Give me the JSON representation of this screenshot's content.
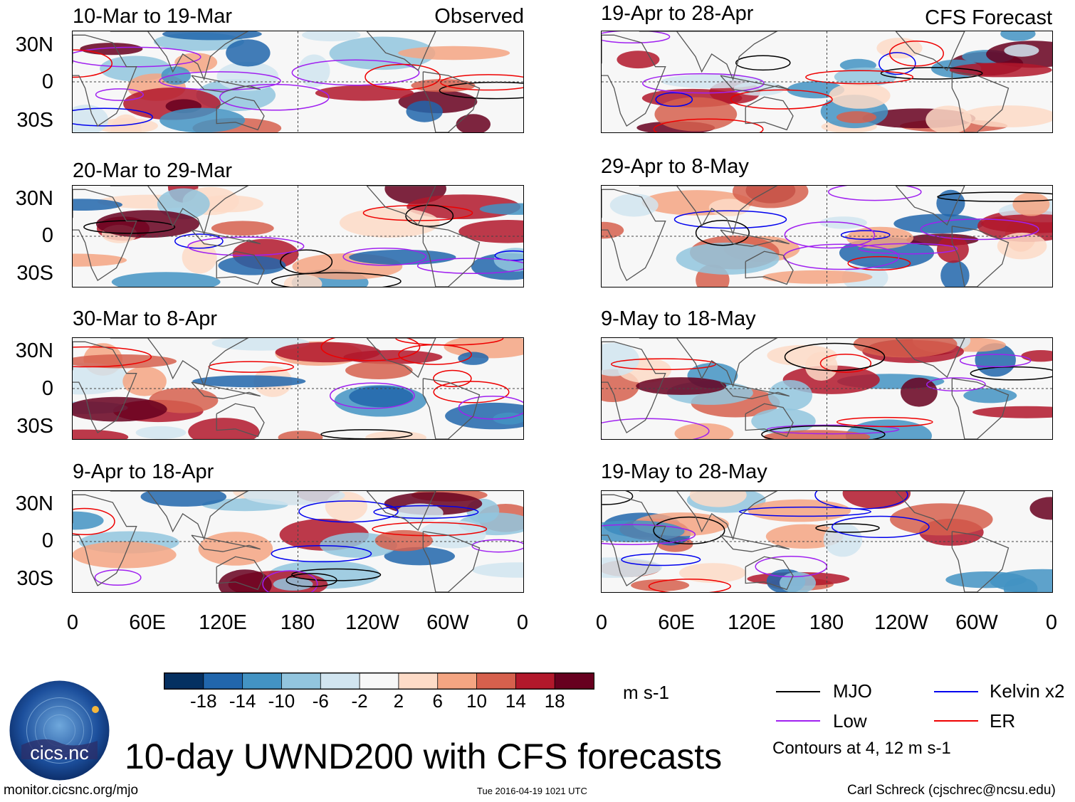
{
  "title": "10-day UWND200 with CFS forecasts",
  "observed_label": "Observed",
  "forecast_label": "CFS Forecast",
  "lat_ticks": [
    "30N",
    "0",
    "30S"
  ],
  "lon_ticks": [
    "0",
    "60E",
    "120E",
    "180",
    "120W",
    "60W",
    "0"
  ],
  "observed_panels": [
    {
      "label": "10-Mar to 19-Mar"
    },
    {
      "label": "20-Mar to 29-Mar"
    },
    {
      "label": "30-Mar to 8-Apr"
    },
    {
      "label": "9-Apr to 18-Apr"
    }
  ],
  "forecast_panels": [
    {
      "label": "19-Apr to 28-Apr"
    },
    {
      "label": "29-Apr to 8-May"
    },
    {
      "label": "9-May to 18-May"
    },
    {
      "label": "19-May to 28-May"
    }
  ],
  "colorbar": {
    "colors": [
      "#053061",
      "#2166ac",
      "#4393c3",
      "#92c5de",
      "#d1e5f0",
      "#f7f7f7",
      "#fddbc7",
      "#f4a582",
      "#d6604d",
      "#b2182b",
      "#67001f"
    ],
    "labels": [
      "-18",
      "-14",
      "-10",
      "-6",
      "-2",
      "2",
      "6",
      "10",
      "14",
      "18"
    ],
    "units": "m s-1"
  },
  "legend": {
    "items": [
      {
        "label": "MJO",
        "color": "#000000"
      },
      {
        "label": "Kelvin x2",
        "color": "#0000ee"
      },
      {
        "label": "Low",
        "color": "#a020f0"
      },
      {
        "label": "ER",
        "color": "#ee0000"
      }
    ],
    "note": "Contours at 4, 12 m s-1"
  },
  "logo_text": "cics.nc",
  "footer": {
    "url": "monitor.cicsnc.org/mjo",
    "timestamp": "Tue 2016-04-19 1021 UTC",
    "author": "Carl Schreck (cjschrec@ncsu.edu)"
  }
}
